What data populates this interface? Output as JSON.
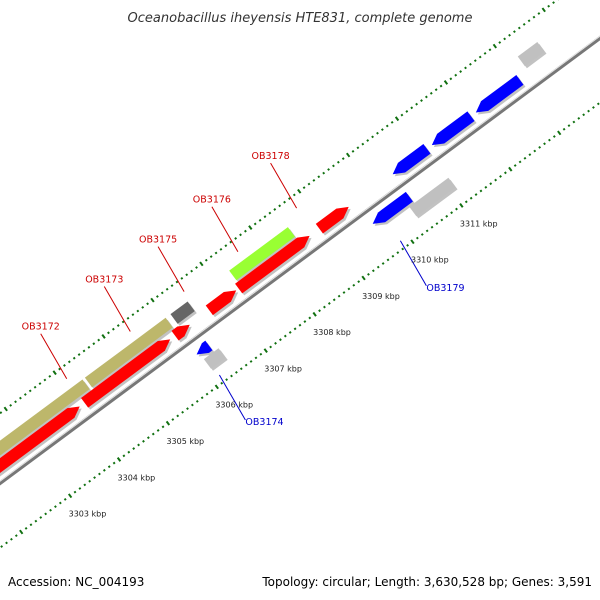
{
  "title": "Oceanobacillus iheyensis HTE831, complete genome",
  "footer": {
    "accession": "Accession: NC_004193",
    "summary": "Topology: circular; Length: 3,630,528 bp; Genes: 3,591"
  },
  "colors": {
    "forward_cds": "#ff0000",
    "reverse_cds": "#0000ff",
    "rna_gray": "#c0c0c0",
    "dark_gray": "#666666",
    "khaki": "#bdb76b",
    "lime": "#99ff33",
    "tick_green": "#107010",
    "backbone": "#888888",
    "forward_label": "#cc0000",
    "reverse_label": "#0000cc"
  },
  "ruler": {
    "unit": "kbp",
    "labeled_ticks": [
      {
        "kbp": 3303,
        "label": "3303 kbp"
      },
      {
        "kbp": 3304,
        "label": "3304 kbp"
      },
      {
        "kbp": 3305,
        "label": "3305 kbp"
      },
      {
        "kbp": 3306,
        "label": "3306 kbp"
      },
      {
        "kbp": 3307,
        "label": "3307 kbp"
      },
      {
        "kbp": 3308,
        "label": "3308 kbp"
      },
      {
        "kbp": 3309,
        "label": "3309 kbp"
      },
      {
        "kbp": 3310,
        "label": "3310 kbp"
      },
      {
        "kbp": 3311,
        "label": "3311 kbp"
      }
    ]
  },
  "features": [
    {
      "start_kbp": 3302.0,
      "end_kbp": 3304.3,
      "track": "outer2",
      "color": "khaki"
    },
    {
      "start_kbp": 3304.35,
      "end_kbp": 3306.0,
      "track": "outer2",
      "color": "khaki"
    },
    {
      "start_kbp": 3306.1,
      "end_kbp": 3306.45,
      "track": "outer2",
      "color": "dark_gray"
    },
    {
      "start_kbp": 3307.3,
      "end_kbp": 3308.5,
      "track": "outer2",
      "color": "lime"
    },
    {
      "start_kbp": 3302.0,
      "end_kbp": 3304.0,
      "track": "outer1",
      "color": "forward_cds"
    },
    {
      "start_kbp": 3304.1,
      "end_kbp": 3305.85,
      "track": "outer1",
      "color": "forward_cds"
    },
    {
      "start_kbp": 3305.95,
      "end_kbp": 3306.25,
      "track": "outer1",
      "color": "forward_cds"
    },
    {
      "start_kbp": 3306.65,
      "end_kbp": 3307.2,
      "track": "outer1",
      "color": "forward_cds"
    },
    {
      "start_kbp": 3307.25,
      "end_kbp": 3308.7,
      "track": "outer1",
      "color": "forward_cds"
    },
    {
      "start_kbp": 3308.9,
      "end_kbp": 3309.5,
      "track": "outer1",
      "color": "forward_cds"
    },
    {
      "start_kbp": 3310.4,
      "end_kbp": 3311.1,
      "track": "outer1",
      "color": "reverse_cds"
    },
    {
      "start_kbp": 3311.2,
      "end_kbp": 3312.0,
      "track": "outer1",
      "color": "reverse_cds"
    },
    {
      "start_kbp": 3312.1,
      "end_kbp": 3313.0,
      "track": "outer1",
      "color": "reverse_cds"
    },
    {
      "start_kbp": 3313.2,
      "end_kbp": 3313.6,
      "track": "outer2",
      "color": "rna_gray"
    },
    {
      "start_kbp": 3306.05,
      "end_kbp": 3306.3,
      "track": "inner1",
      "color": "reverse_cds"
    },
    {
      "start_kbp": 3306.1,
      "end_kbp": 3306.4,
      "track": "inner2",
      "color": "rna_gray"
    },
    {
      "start_kbp": 3309.65,
      "end_kbp": 3310.4,
      "track": "inner1",
      "color": "reverse_cds"
    },
    {
      "start_kbp": 3310.3,
      "end_kbp": 3311.1,
      "track": "inner2",
      "color": "rna_gray"
    }
  ],
  "labels": [
    {
      "text": "OB3172",
      "kbp": 3304.1,
      "side": "outer",
      "color": "forward_label"
    },
    {
      "text": "OB3173",
      "kbp": 3305.4,
      "side": "outer",
      "color": "forward_label"
    },
    {
      "text": "OB3175",
      "kbp": 3306.5,
      "side": "outer",
      "color": "forward_label"
    },
    {
      "text": "OB3176",
      "kbp": 3307.6,
      "side": "outer",
      "color": "forward_label"
    },
    {
      "text": "OB3178",
      "kbp": 3308.8,
      "side": "outer",
      "color": "forward_label"
    },
    {
      "text": "OB3174",
      "kbp": 3306.15,
      "side": "inner",
      "color": "reverse_label"
    },
    {
      "text": "OB3179",
      "kbp": 3309.85,
      "side": "inner",
      "color": "reverse_label"
    }
  ]
}
